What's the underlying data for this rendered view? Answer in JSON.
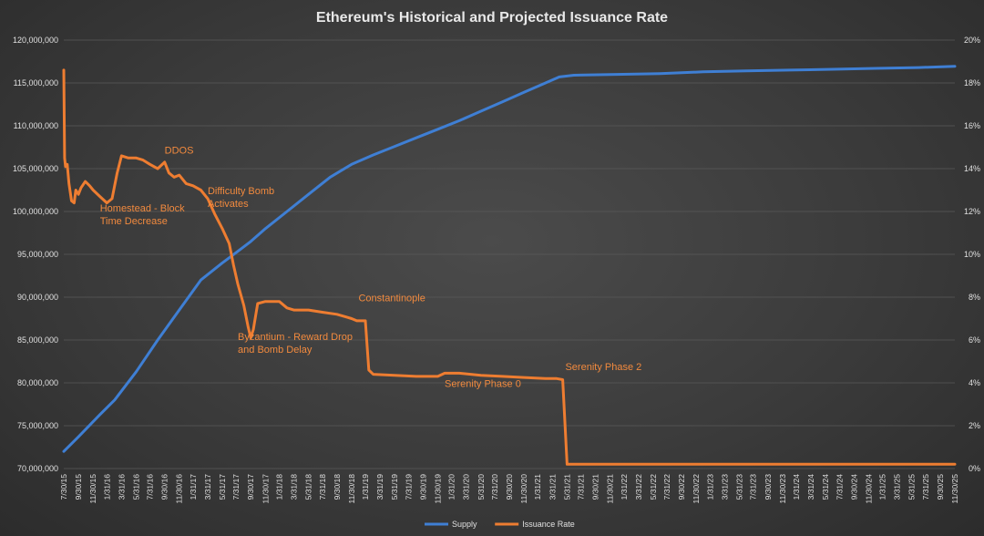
{
  "chart_data": {
    "type": "line",
    "title": "Ethereum's Historical and Projected Issuance Rate",
    "xlabel": "",
    "ylabel_left": "",
    "ylabel_right": "",
    "grid": true,
    "legend_position": "bottom",
    "y_left": {
      "min": 70000000,
      "max": 120000000,
      "ticks": [
        "70,000,000",
        "75,000,000",
        "80,000,000",
        "85,000,000",
        "90,000,000",
        "95,000,000",
        "100,000,000",
        "105,000,000",
        "110,000,000",
        "115,000,000",
        "120,000,000"
      ],
      "tick_values": [
        70000000,
        75000000,
        80000000,
        85000000,
        90000000,
        95000000,
        100000000,
        105000000,
        110000000,
        115000000,
        120000000
      ]
    },
    "y_right": {
      "min": 0,
      "max": 20,
      "ticks": [
        "0%",
        "2%",
        "4%",
        "6%",
        "8%",
        "10%",
        "12%",
        "14%",
        "16%",
        "18%",
        "20%"
      ],
      "tick_values": [
        0,
        2,
        4,
        6,
        8,
        10,
        12,
        14,
        16,
        18,
        20
      ]
    },
    "x_range": [
      2015.58,
      2025.92
    ],
    "x_ticks": [
      {
        "label": "7/30/15",
        "t": 2015.58
      },
      {
        "label": "9/30/15",
        "t": 2015.75
      },
      {
        "label": "11/30/15",
        "t": 2015.92
      },
      {
        "label": "1/31/16",
        "t": 2016.08
      },
      {
        "label": "3/31/16",
        "t": 2016.25
      },
      {
        "label": "5/31/16",
        "t": 2016.42
      },
      {
        "label": "7/31/16",
        "t": 2016.58
      },
      {
        "label": "9/30/16",
        "t": 2016.75
      },
      {
        "label": "11/30/16",
        "t": 2016.92
      },
      {
        "label": "1/31/17",
        "t": 2017.08
      },
      {
        "label": "3/31/17",
        "t": 2017.25
      },
      {
        "label": "5/31/17",
        "t": 2017.42
      },
      {
        "label": "7/31/17",
        "t": 2017.58
      },
      {
        "label": "9/30/17",
        "t": 2017.75
      },
      {
        "label": "11/30/17",
        "t": 2017.92
      },
      {
        "label": "1/31/18",
        "t": 2018.08
      },
      {
        "label": "3/31/18",
        "t": 2018.25
      },
      {
        "label": "5/31/18",
        "t": 2018.42
      },
      {
        "label": "7/31/18",
        "t": 2018.58
      },
      {
        "label": "9/30/18",
        "t": 2018.75
      },
      {
        "label": "11/30/18",
        "t": 2018.92
      },
      {
        "label": "1/31/19",
        "t": 2019.08
      },
      {
        "label": "3/31/19",
        "t": 2019.25
      },
      {
        "label": "5/31/19",
        "t": 2019.42
      },
      {
        "label": "7/31/19",
        "t": 2019.58
      },
      {
        "label": "9/30/19",
        "t": 2019.75
      },
      {
        "label": "11/30/19",
        "t": 2019.92
      },
      {
        "label": "1/31/20",
        "t": 2020.08
      },
      {
        "label": "3/31/20",
        "t": 2020.25
      },
      {
        "label": "5/31/20",
        "t": 2020.42
      },
      {
        "label": "7/31/20",
        "t": 2020.58
      },
      {
        "label": "9/30/20",
        "t": 2020.75
      },
      {
        "label": "11/30/20",
        "t": 2020.92
      },
      {
        "label": "1/31/21",
        "t": 2021.08
      },
      {
        "label": "3/31/21",
        "t": 2021.25
      },
      {
        "label": "5/31/21",
        "t": 2021.42
      },
      {
        "label": "7/31/21",
        "t": 2021.58
      },
      {
        "label": "9/30/21",
        "t": 2021.75
      },
      {
        "label": "11/30/21",
        "t": 2021.92
      },
      {
        "label": "1/31/22",
        "t": 2022.08
      },
      {
        "label": "3/31/22",
        "t": 2022.25
      },
      {
        "label": "5/31/22",
        "t": 2022.42
      },
      {
        "label": "7/31/22",
        "t": 2022.58
      },
      {
        "label": "9/30/22",
        "t": 2022.75
      },
      {
        "label": "11/30/22",
        "t": 2022.92
      },
      {
        "label": "1/31/23",
        "t": 2023.08
      },
      {
        "label": "3/31/23",
        "t": 2023.25
      },
      {
        "label": "5/31/23",
        "t": 2023.42
      },
      {
        "label": "7/31/23",
        "t": 2023.58
      },
      {
        "label": "9/30/23",
        "t": 2023.75
      },
      {
        "label": "11/30/23",
        "t": 2023.92
      },
      {
        "label": "1/31/24",
        "t": 2024.08
      },
      {
        "label": "3/31/24",
        "t": 2024.25
      },
      {
        "label": "5/31/24",
        "t": 2024.42
      },
      {
        "label": "7/31/24",
        "t": 2024.58
      },
      {
        "label": "9/30/24",
        "t": 2024.75
      },
      {
        "label": "11/30/24",
        "t": 2024.92
      },
      {
        "label": "1/31/25",
        "t": 2025.08
      },
      {
        "label": "3/31/25",
        "t": 2025.25
      },
      {
        "label": "5/31/25",
        "t": 2025.42
      },
      {
        "label": "7/31/25",
        "t": 2025.58
      },
      {
        "label": "9/30/25",
        "t": 2025.75
      },
      {
        "label": "11/30/25",
        "t": 2025.92
      }
    ],
    "series": [
      {
        "name": "Supply",
        "axis": "left",
        "color": "#3f7fd4",
        "points": [
          [
            2015.58,
            72000000
          ],
          [
            2015.75,
            73700000
          ],
          [
            2016.0,
            76300000
          ],
          [
            2016.17,
            78000000
          ],
          [
            2016.42,
            81300000
          ],
          [
            2016.67,
            85000000
          ],
          [
            2016.92,
            88500000
          ],
          [
            2017.17,
            92000000
          ],
          [
            2017.42,
            94000000
          ],
          [
            2017.58,
            95200000
          ],
          [
            2017.75,
            96500000
          ],
          [
            2017.92,
            98000000
          ],
          [
            2018.17,
            100000000
          ],
          [
            2018.42,
            102000000
          ],
          [
            2018.67,
            104000000
          ],
          [
            2018.92,
            105500000
          ],
          [
            2019.17,
            106600000
          ],
          [
            2019.42,
            107600000
          ],
          [
            2019.67,
            108600000
          ],
          [
            2019.92,
            109600000
          ],
          [
            2020.17,
            110600000
          ],
          [
            2020.42,
            111700000
          ],
          [
            2020.67,
            112800000
          ],
          [
            2020.92,
            113900000
          ],
          [
            2021.17,
            115000000
          ],
          [
            2021.33,
            115700000
          ],
          [
            2021.5,
            115900000
          ],
          [
            2022.0,
            116000000
          ],
          [
            2022.5,
            116100000
          ],
          [
            2023.0,
            116300000
          ],
          [
            2023.5,
            116400000
          ],
          [
            2024.0,
            116500000
          ],
          [
            2024.5,
            116600000
          ],
          [
            2025.0,
            116700000
          ],
          [
            2025.5,
            116800000
          ],
          [
            2025.92,
            116950000
          ]
        ]
      },
      {
        "name": "Issuance Rate",
        "axis": "right",
        "color": "#ee7d31",
        "points": [
          [
            2015.58,
            18.6
          ],
          [
            2015.59,
            14.5
          ],
          [
            2015.6,
            14.1
          ],
          [
            2015.62,
            14.2
          ],
          [
            2015.64,
            13.3
          ],
          [
            2015.67,
            12.5
          ],
          [
            2015.7,
            12.4
          ],
          [
            2015.72,
            13.0
          ],
          [
            2015.75,
            12.8
          ],
          [
            2015.78,
            13.1
          ],
          [
            2015.83,
            13.4
          ],
          [
            2015.88,
            13.2
          ],
          [
            2015.92,
            13.0
          ],
          [
            2016.0,
            12.7
          ],
          [
            2016.08,
            12.4
          ],
          [
            2016.14,
            12.6
          ],
          [
            2016.2,
            13.8
          ],
          [
            2016.25,
            14.6
          ],
          [
            2016.33,
            14.5
          ],
          [
            2016.42,
            14.5
          ],
          [
            2016.5,
            14.4
          ],
          [
            2016.58,
            14.2
          ],
          [
            2016.67,
            14.0
          ],
          [
            2016.75,
            14.3
          ],
          [
            2016.8,
            13.8
          ],
          [
            2016.86,
            13.6
          ],
          [
            2016.92,
            13.7
          ],
          [
            2017.0,
            13.3
          ],
          [
            2017.08,
            13.2
          ],
          [
            2017.17,
            13.0
          ],
          [
            2017.25,
            12.6
          ],
          [
            2017.33,
            11.9
          ],
          [
            2017.42,
            11.2
          ],
          [
            2017.5,
            10.5
          ],
          [
            2017.55,
            9.5
          ],
          [
            2017.6,
            8.6
          ],
          [
            2017.67,
            7.6
          ],
          [
            2017.72,
            6.6
          ],
          [
            2017.75,
            6.1
          ],
          [
            2017.78,
            6.5
          ],
          [
            2017.83,
            7.7
          ],
          [
            2017.92,
            7.8
          ],
          [
            2018.0,
            7.8
          ],
          [
            2018.08,
            7.8
          ],
          [
            2018.17,
            7.5
          ],
          [
            2018.25,
            7.4
          ],
          [
            2018.42,
            7.4
          ],
          [
            2018.58,
            7.3
          ],
          [
            2018.75,
            7.2
          ],
          [
            2018.92,
            7.0
          ],
          [
            2018.98,
            6.9
          ],
          [
            2019.08,
            6.9
          ],
          [
            2019.12,
            4.6
          ],
          [
            2019.17,
            4.4
          ],
          [
            2019.42,
            4.35
          ],
          [
            2019.67,
            4.3
          ],
          [
            2019.92,
            4.3
          ],
          [
            2020.0,
            4.45
          ],
          [
            2020.17,
            4.45
          ],
          [
            2020.42,
            4.35
          ],
          [
            2020.67,
            4.3
          ],
          [
            2020.92,
            4.25
          ],
          [
            2021.17,
            4.2
          ],
          [
            2021.3,
            4.2
          ],
          [
            2021.37,
            4.15
          ],
          [
            2021.42,
            0.2
          ],
          [
            2022.0,
            0.2
          ],
          [
            2023.0,
            0.2
          ],
          [
            2024.0,
            0.2
          ],
          [
            2025.0,
            0.2
          ],
          [
            2025.92,
            0.2
          ]
        ]
      }
    ],
    "annotations": [
      {
        "lines": [
          "Homestead - Block",
          "Time Decrease"
        ],
        "series": "Issuance Rate",
        "t": 2016.0,
        "v": 12.0
      },
      {
        "lines": [
          "DDOS"
        ],
        "series": "Issuance Rate",
        "t": 2016.75,
        "v": 14.7
      },
      {
        "lines": [
          "Difficulty Bomb",
          "Activates"
        ],
        "series": "Issuance Rate",
        "t": 2017.25,
        "v": 12.8
      },
      {
        "lines": [
          "Byzantium - Reward Drop",
          "and Bomb Delay"
        ],
        "series": "Issuance Rate",
        "t": 2017.6,
        "v": 6.0
      },
      {
        "lines": [
          "Constantinople"
        ],
        "series": "Issuance Rate",
        "t": 2019.0,
        "v": 7.8
      },
      {
        "lines": [
          "Serenity Phase 0"
        ],
        "series": "Issuance Rate",
        "t": 2020.0,
        "v": 3.8
      },
      {
        "lines": [
          "Serenity Phase 2"
        ],
        "series": "Issuance Rate",
        "t": 2021.4,
        "v": 4.6
      }
    ]
  }
}
